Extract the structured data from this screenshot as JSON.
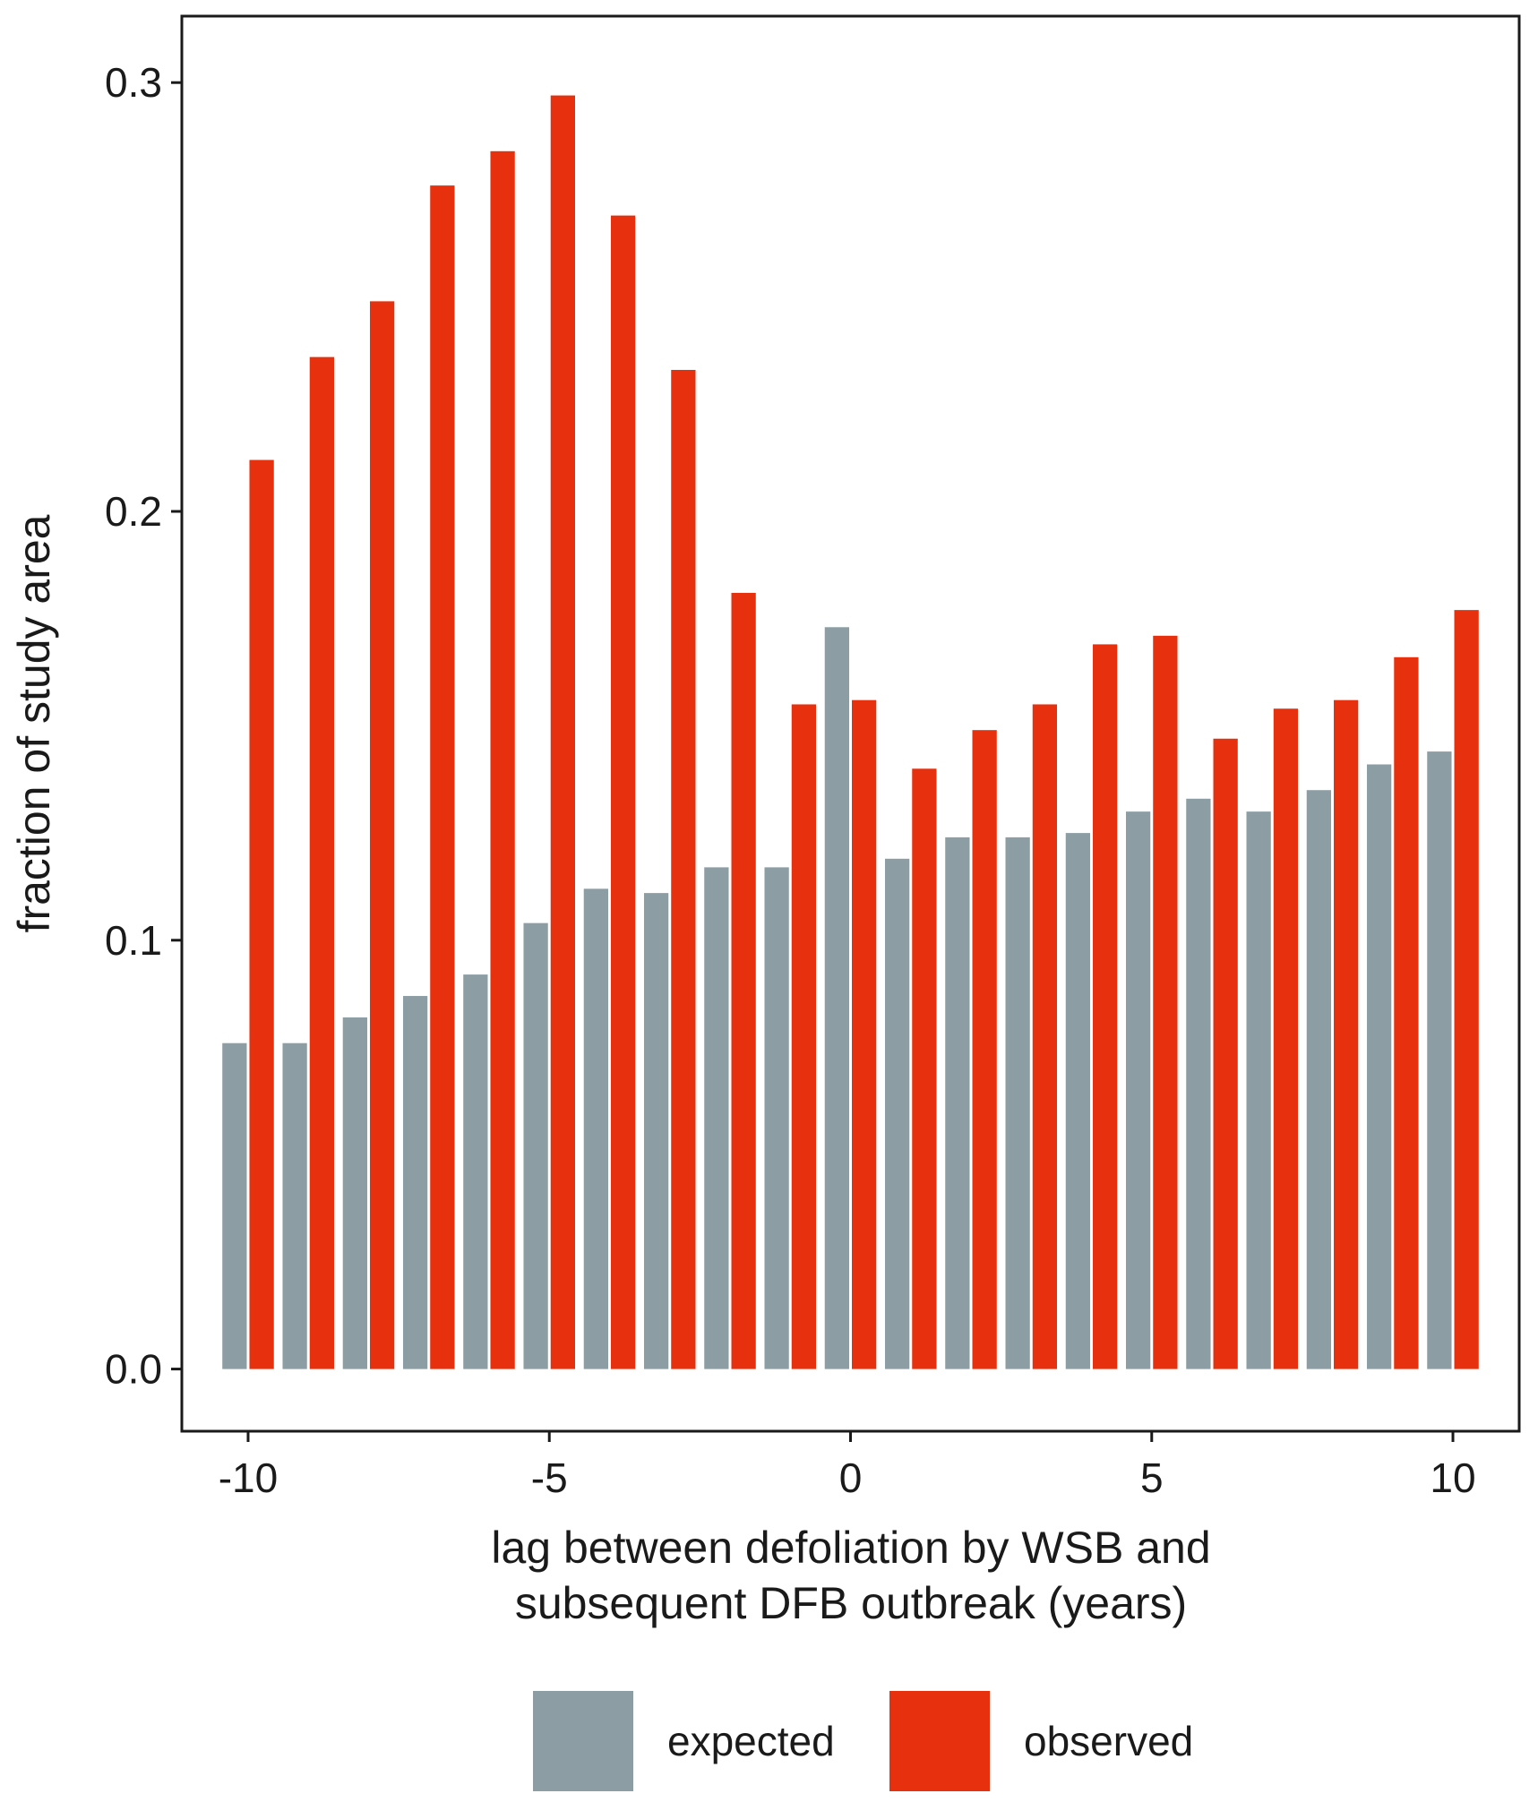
{
  "chart_data": {
    "type": "bar",
    "title": "",
    "xlabel": "lag between defoliation by WSB and\nsubsequent DFB outbreak (years)",
    "xlabel_lines": [
      "lag between defoliation by WSB and",
      "subsequent DFB outbreak (years)"
    ],
    "ylabel": "fraction of study area",
    "x": [
      -10,
      -9,
      -8,
      -7,
      -6,
      -5,
      -4,
      -3,
      -2,
      -1,
      0,
      1,
      2,
      3,
      4,
      5,
      6,
      7,
      8,
      9,
      10
    ],
    "series": [
      {
        "name": "expected",
        "color": "#8c9da4",
        "values": [
          0.076,
          0.076,
          0.082,
          0.087,
          0.092,
          0.104,
          0.112,
          0.111,
          0.117,
          0.117,
          0.173,
          0.119,
          0.124,
          0.124,
          0.125,
          0.13,
          0.133,
          0.13,
          0.135,
          0.141,
          0.144
        ]
      },
      {
        "name": "observed",
        "color": "#e6300e",
        "values": [
          0.212,
          0.236,
          0.249,
          0.276,
          0.284,
          0.297,
          0.269,
          0.233,
          0.181,
          0.155,
          0.156,
          0.14,
          0.149,
          0.155,
          0.169,
          0.171,
          0.147,
          0.154,
          0.156,
          0.166,
          0.177
        ]
      }
    ],
    "xticks": [
      -10,
      -5,
      0,
      5,
      10
    ],
    "xtick_labels": [
      "-10",
      "-5",
      "0",
      "5",
      "10"
    ],
    "yticks": [
      0.0,
      0.1,
      0.2,
      0.3
    ],
    "ytick_labels": [
      "0.0",
      "0.1",
      "0.2",
      "0.3"
    ],
    "xlim": [
      -11.1,
      11.1
    ],
    "ylim": [
      -0.0145,
      0.3155
    ],
    "grid": false,
    "legend_position": "bottom"
  }
}
